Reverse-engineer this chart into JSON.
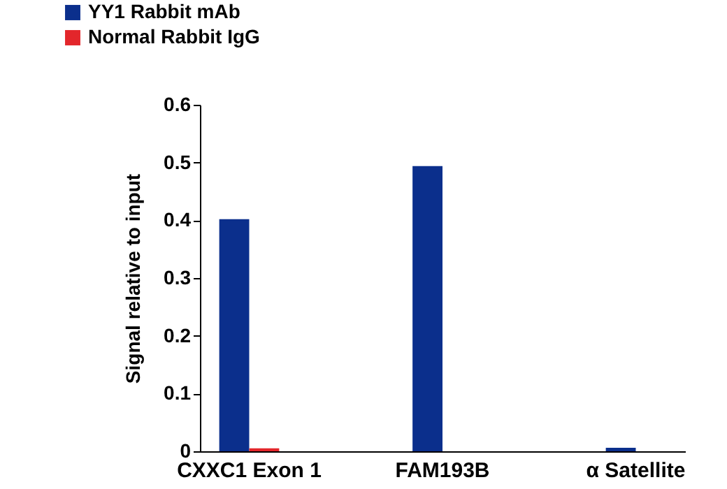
{
  "chart_data": {
    "type": "bar",
    "ylabel": "Signal relative to input",
    "categories": [
      "CXXC1 Exon 1",
      "FAM193B",
      "α Satellite"
    ],
    "series": [
      {
        "name": "YY1 Rabbit mAb",
        "color": "#0b2f8c",
        "values": [
          0.402,
          0.494,
          0.006
        ]
      },
      {
        "name": "Normal Rabbit IgG",
        "color": "#e3262b",
        "values": [
          0.005,
          0,
          0
        ]
      }
    ],
    "ylim": [
      0,
      0.6
    ],
    "yticks": [
      0,
      0.1,
      0.2,
      0.3,
      0.4,
      0.5,
      0.6
    ],
    "legend": "top left",
    "grid": false
  }
}
